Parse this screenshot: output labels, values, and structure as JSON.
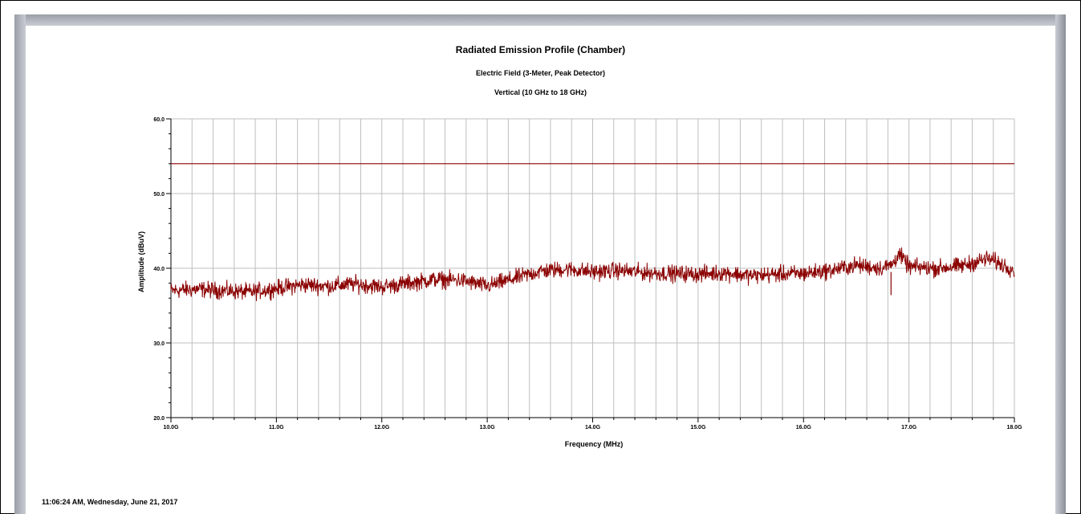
{
  "chart_data": {
    "type": "line",
    "title": "Radiated Emission Profile (Chamber)",
    "subtitle_1": "Electric Field (3-Meter, Peak Detector)",
    "subtitle_2": "Vertical (10 GHz to 18 GHz)",
    "xlabel": "Frequency (MHz)",
    "ylabel": "Amplitude (dBuV)",
    "xlim": [
      10,
      18
    ],
    "ylim": [
      20,
      60
    ],
    "x_ticks": [
      "10.0G",
      "11.0G",
      "12.0G",
      "13.0G",
      "14.0G",
      "15.0G",
      "16.0G",
      "17.0G",
      "18.0G"
    ],
    "y_ticks": [
      "20.0",
      "30.0",
      "40.0",
      "50.0",
      "60.0"
    ],
    "grid": true,
    "colors": {
      "trace": "#8b0000",
      "limit": "#8b0000",
      "grid": "#bfbfbf"
    },
    "series": [
      {
        "x": [
          10.0,
          10.25,
          10.5,
          10.75,
          11.0,
          11.25,
          11.5,
          11.75,
          12.0,
          12.25,
          12.5,
          12.75,
          13.0,
          13.25,
          13.5,
          13.75,
          14.0,
          14.25,
          14.5,
          14.75,
          15.0,
          15.25,
          15.5,
          15.75,
          16.0,
          16.25,
          16.5,
          16.75,
          16.85,
          16.9,
          17.0,
          17.25,
          17.5,
          17.75,
          18.0
        ],
        "values": [
          37.0,
          37.2,
          37.0,
          36.8,
          37.3,
          37.8,
          37.6,
          37.9,
          37.5,
          38.0,
          38.5,
          38.4,
          37.6,
          38.6,
          39.6,
          39.9,
          39.5,
          39.7,
          39.4,
          39.3,
          39.2,
          39.4,
          39.0,
          39.2,
          39.3,
          39.7,
          40.4,
          40.0,
          40.6,
          42.0,
          40.2,
          40.0,
          40.3,
          41.3,
          39.8
        ]
      }
    ],
    "limit_line": {
      "value": 54.0
    }
  },
  "footer": {
    "timestamp": "11:06:24 AM, Wednesday, June 21, 2017"
  }
}
